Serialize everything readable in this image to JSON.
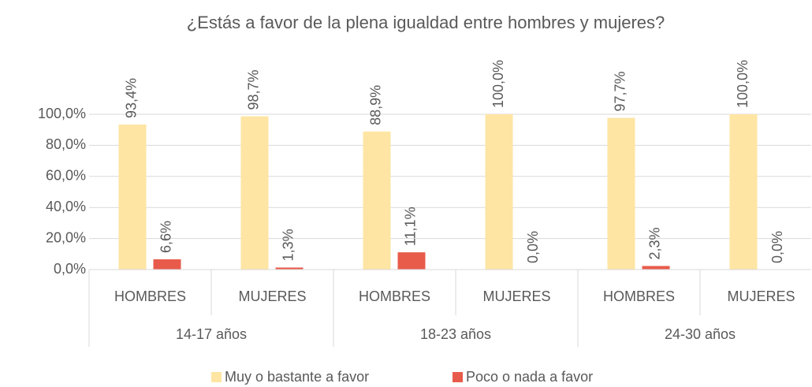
{
  "chart_data": {
    "type": "bar",
    "title": "¿Estás a favor de la plena igualdad entre hombres y mujeres?",
    "categories": [
      "HOMBRES",
      "MUJERES",
      "HOMBRES",
      "MUJERES",
      "HOMBRES",
      "MUJERES"
    ],
    "groups": [
      "14-17 años",
      "18-23 años",
      "24-30 años"
    ],
    "series": [
      {
        "name": "Muy o bastante a favor",
        "color": "#fee5a3",
        "values": [
          93.4,
          98.7,
          88.9,
          100,
          97.7,
          100
        ],
        "value_labels": [
          "93,4%",
          "98,7%",
          "88,9%",
          "100,0%",
          "97,7%",
          "100,0%"
        ]
      },
      {
        "name": "Poco o nada a favor",
        "color": "#e85b4b",
        "values": [
          6.6,
          1.3,
          11.1,
          0,
          2.3,
          0
        ],
        "value_labels": [
          "6,6%",
          "1,3%",
          "11,1%",
          "0,0%",
          "2,3%",
          "0,0%"
        ]
      }
    ],
    "ylim": [
      0,
      100
    ],
    "yticks": [
      {
        "value": 0,
        "label": "0,0%"
      },
      {
        "value": 20,
        "label": "20,0%"
      },
      {
        "value": 40,
        "label": "40,0%"
      },
      {
        "value": 60,
        "label": "60,0%"
      },
      {
        "value": 80,
        "label": "80,0%"
      },
      {
        "value": 100,
        "label": "100,0%"
      }
    ],
    "grid": true,
    "legend": "bottom"
  }
}
